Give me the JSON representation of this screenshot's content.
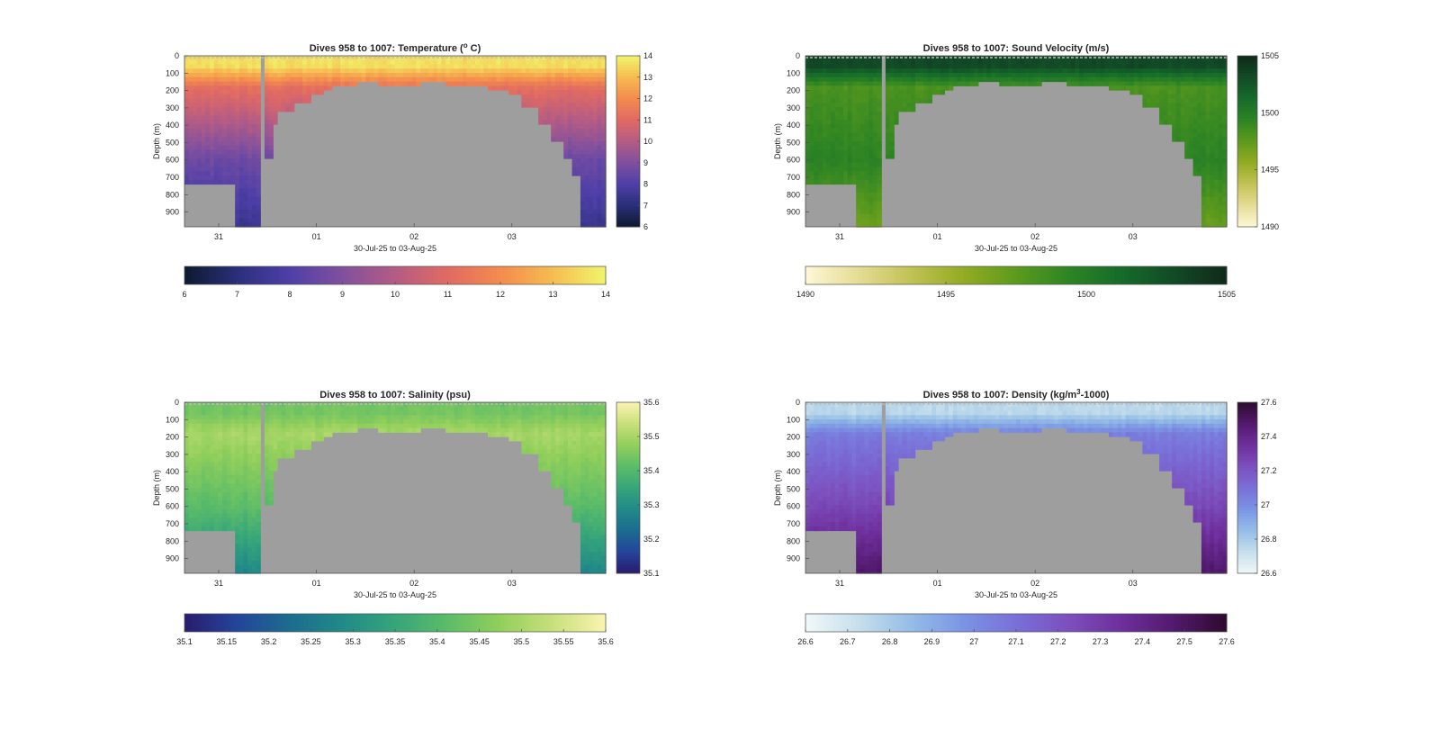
{
  "chart_data": [
    {
      "type": "heatmap",
      "title": "Dives 958 to 1007: Temperature (",
      "title_sup": "o",
      "title_end": " C)",
      "xlabel": "30-Jul-25 to 03-Aug-25",
      "ylabel": "Depth (m)",
      "x_ticks": [
        "31",
        "01",
        "02",
        "03"
      ],
      "x_tick_days": [
        31,
        32,
        33,
        34
      ],
      "xlim_days": [
        30.65,
        34.96
      ],
      "y_ticks": [
        "0",
        "100",
        "200",
        "300",
        "400",
        "500",
        "600",
        "700",
        "800",
        "900"
      ],
      "ylim": [
        0,
        985
      ],
      "colorbar_ticks": [
        "6",
        "7",
        "8",
        "9",
        "10",
        "11",
        "12",
        "13",
        "14"
      ],
      "clim": [
        6,
        14
      ],
      "colormap": [
        "#0d1a2e",
        "#2a2f7a",
        "#4f3fa8",
        "#80509e",
        "#b45c84",
        "#e06a63",
        "#f48b4d",
        "#f6bc52",
        "#f0f56b"
      ],
      "profile": {
        "surface": 13.6,
        "mid": 11.2,
        "deep": 8.6,
        "bottom": 7.4
      },
      "mask_color": "#9e9e9e"
    },
    {
      "type": "heatmap",
      "title": "Dives 958 to 1007: Sound Velocity (m/s)",
      "xlabel": "30-Jul-25 to 03-Aug-25",
      "ylabel": "Depth (m)",
      "x_ticks": [
        "31",
        "01",
        "02",
        "03"
      ],
      "x_tick_days": [
        31,
        32,
        33,
        34
      ],
      "xlim_days": [
        30.65,
        34.96
      ],
      "y_ticks": [
        "0",
        "100",
        "200",
        "300",
        "400",
        "500",
        "600",
        "700",
        "800",
        "900"
      ],
      "ylim": [
        0,
        985
      ],
      "colorbar_ticks": [
        "1490",
        "1495",
        "1500",
        "1505"
      ],
      "clim": [
        1490,
        1505
      ],
      "colormap": [
        "#fdf8d6",
        "#e5dc95",
        "#c1c255",
        "#93ab22",
        "#5d9a1d",
        "#2d8424",
        "#166b2a",
        "#124a26",
        "#0f2a1a"
      ],
      "profile": {
        "surface": 1503.2,
        "mid": 1498.2,
        "deep": 1499.5,
        "bottom": 1497.0
      },
      "mask_color": "#9e9e9e"
    },
    {
      "type": "heatmap",
      "title": "Dives 958 to 1007: Salinity (psu)",
      "xlabel": "30-Jul-25 to 03-Aug-25",
      "ylabel": "Depth (m)",
      "x_ticks": [
        "31",
        "01",
        "02",
        "03"
      ],
      "x_tick_days": [
        31,
        32,
        33,
        34
      ],
      "xlim_days": [
        30.65,
        34.96
      ],
      "y_ticks": [
        "0",
        "100",
        "200",
        "300",
        "400",
        "500",
        "600",
        "700",
        "800",
        "900"
      ],
      "ylim": [
        0,
        985
      ],
      "colorbar_ticks": [
        "35.1",
        "35.15",
        "35.2",
        "35.25",
        "35.3",
        "35.35",
        "35.4",
        "35.45",
        "35.5",
        "35.55",
        "35.6"
      ],
      "colorbar_ticks_right": [
        "35.1",
        "35.2",
        "35.3",
        "35.4",
        "35.5",
        "35.6"
      ],
      "clim": [
        35.1,
        35.6
      ],
      "colormap": [
        "#2a1b6e",
        "#23459a",
        "#1c6c8e",
        "#218a88",
        "#36a57a",
        "#5cbc68",
        "#92cf5b",
        "#c8e07c",
        "#fbf3b0"
      ],
      "profile": {
        "surface": 35.44,
        "mid": 35.5,
        "deep": 35.41,
        "bottom": 35.28
      },
      "mask_color": "#9e9e9e"
    },
    {
      "type": "heatmap",
      "title": "Dives 958 to 1007: Density (kg/m",
      "title_sup": "3",
      "title_end": "-1000)",
      "xlabel": "30-Jul-25 to 03-Aug-25",
      "ylabel": "Depth (m)",
      "x_ticks": [
        "31",
        "01",
        "02",
        "03"
      ],
      "x_tick_days": [
        31,
        32,
        33,
        34
      ],
      "xlim_days": [
        30.65,
        34.96
      ],
      "y_ticks": [
        "0",
        "100",
        "200",
        "300",
        "400",
        "500",
        "600",
        "700",
        "800",
        "900"
      ],
      "ylim": [
        0,
        985
      ],
      "colorbar_ticks": [
        "26.6",
        "26.7",
        "26.8",
        "26.9",
        "27",
        "27.1",
        "27.2",
        "27.3",
        "27.4",
        "27.5",
        "27.6"
      ],
      "colorbar_ticks_right": [
        "26.6",
        "26.8",
        "27",
        "27.2",
        "27.4",
        "27.6"
      ],
      "clim": [
        26.6,
        27.6
      ],
      "colormap": [
        "#f0f8f8",
        "#c6dfec",
        "#95bde6",
        "#7a94e4",
        "#7a6fd8",
        "#7c4fbd",
        "#6e2f9c",
        "#52196d",
        "#2e0a2e"
      ],
      "profile": {
        "surface": 26.75,
        "mid": 27.05,
        "deep": 27.25,
        "bottom": 27.48
      },
      "mask_color": "#9e9e9e"
    }
  ]
}
